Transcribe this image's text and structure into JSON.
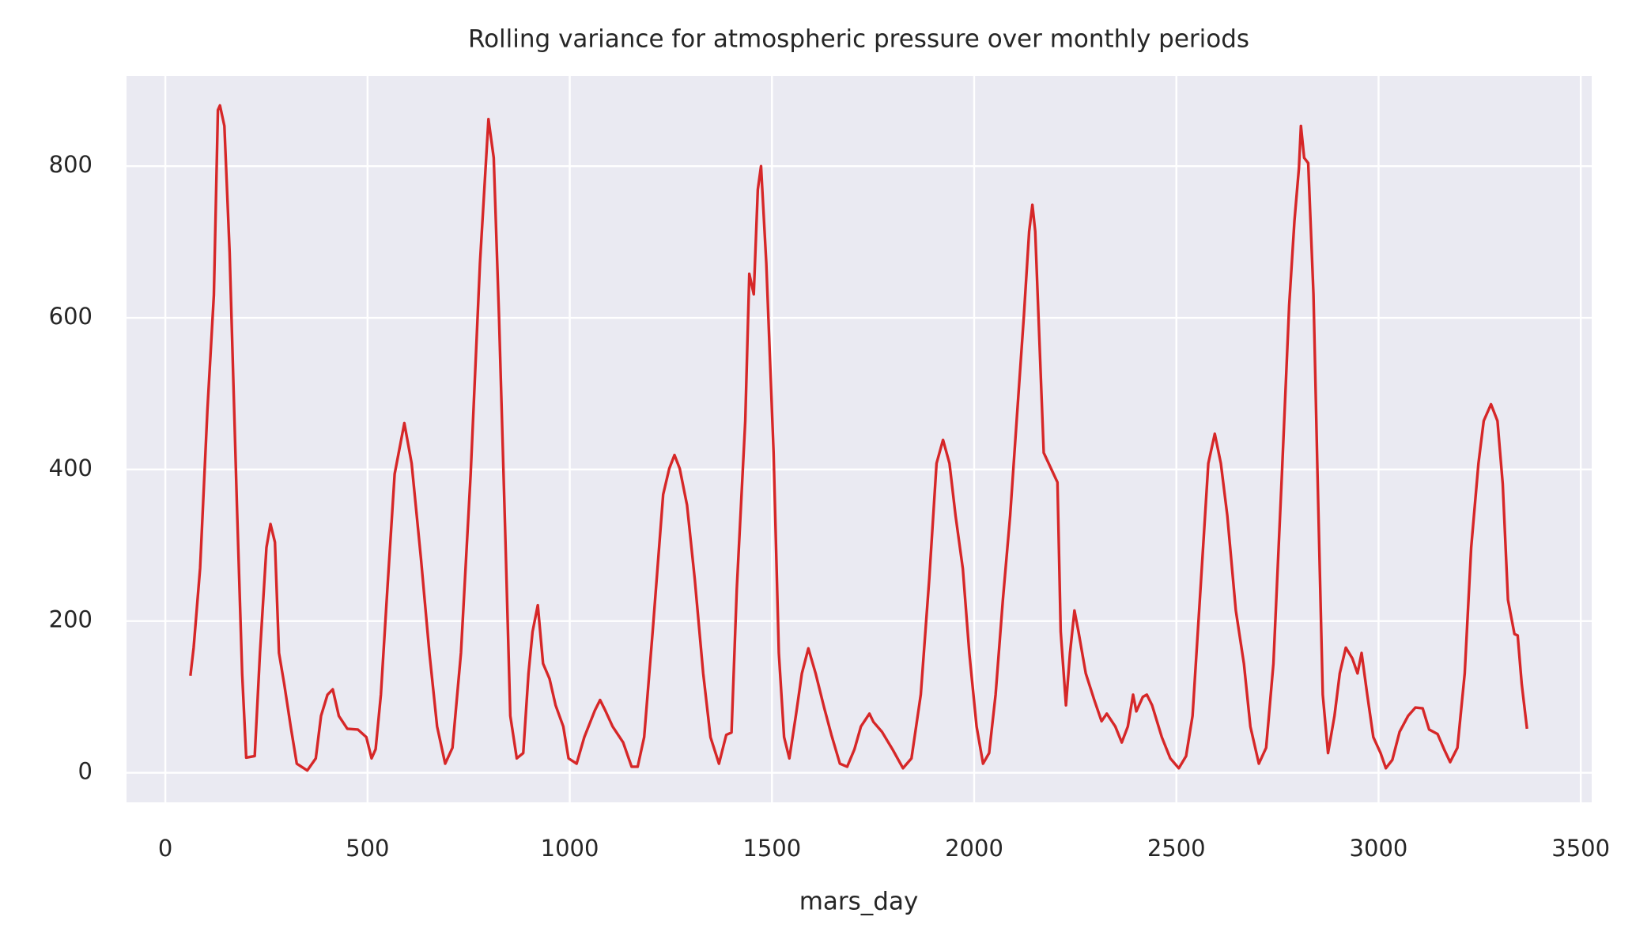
{
  "chart_data": {
    "type": "line",
    "title": "Rolling variance for atmospheric pressure over monthly periods",
    "x_label": "mars_day",
    "x": [
      62,
      70,
      86,
      104,
      120,
      130,
      135,
      146,
      159,
      177,
      190,
      200,
      221,
      234,
      250,
      260,
      271,
      281,
      294,
      310,
      325,
      351,
      372,
      385,
      401,
      414,
      429,
      450,
      476,
      497,
      510,
      520,
      533,
      549,
      567,
      591,
      609,
      632,
      653,
      672,
      692,
      710,
      731,
      755,
      778,
      799,
      812,
      825,
      840,
      853,
      869,
      885,
      898,
      908,
      921,
      934,
      950,
      965,
      984,
      997,
      1017,
      1036,
      1062,
      1075,
      1088,
      1106,
      1132,
      1153,
      1168,
      1184,
      1205,
      1231,
      1246,
      1259,
      1272,
      1290,
      1309,
      1330,
      1348,
      1369,
      1387,
      1400,
      1413,
      1434,
      1444,
      1455,
      1465,
      1473,
      1486,
      1504,
      1517,
      1530,
      1543,
      1559,
      1574,
      1590,
      1608,
      1629,
      1647,
      1668,
      1686,
      1704,
      1720,
      1741,
      1751,
      1772,
      1798,
      1824,
      1845,
      1868,
      1889,
      1907,
      1923,
      1939,
      1954,
      1972,
      1988,
      2006,
      2022,
      2037,
      2053,
      2071,
      2089,
      2105,
      2123,
      2136,
      2144,
      2151,
      2162,
      2172,
      2206,
      2214,
      2227,
      2237,
      2248,
      2258,
      2276,
      2297,
      2315,
      2328,
      2349,
      2365,
      2380,
      2393,
      2401,
      2417,
      2427,
      2440,
      2464,
      2485,
      2506,
      2524,
      2540,
      2558,
      2579,
      2595,
      2610,
      2626,
      2647,
      2667,
      2683,
      2704,
      2722,
      2740,
      2761,
      2779,
      2792,
      2803,
      2808,
      2816,
      2826,
      2839,
      2849,
      2862,
      2875,
      2891,
      2904,
      2919,
      2935,
      2948,
      2958,
      2972,
      2987,
      3005,
      3018,
      3034,
      3052,
      3073,
      3091,
      3109,
      3125,
      3146,
      3162,
      3177,
      3195,
      3213,
      3229,
      3247,
      3260,
      3278,
      3294,
      3307,
      3320,
      3336,
      3344,
      3354,
      3367
    ],
    "series": [
      {
        "name": "rolling variance",
        "color": "#d62728",
        "values": [
          128,
          165,
          270,
          478,
          630,
          874,
          880,
          853,
          686,
          353,
          130,
          20,
          22,
          158,
          297,
          328,
          304,
          158,
          117,
          61,
          12,
          3,
          19,
          75,
          103,
          110,
          75,
          58,
          57,
          47,
          19,
          31,
          103,
          242,
          394,
          461,
          408,
          283,
          158,
          61,
          12,
          33,
          158,
          394,
          672,
          862,
          811,
          603,
          325,
          75,
          19,
          26,
          131,
          186,
          221,
          144,
          124,
          89,
          61,
          19,
          12,
          47,
          82,
          96,
          82,
          61,
          40,
          8,
          8,
          47,
          186,
          367,
          401,
          419,
          401,
          353,
          256,
          131,
          47,
          12,
          50,
          53,
          242,
          464,
          658,
          631,
          769,
          800,
          672,
          422,
          158,
          47,
          19,
          75,
          131,
          164,
          131,
          86,
          50,
          12,
          8,
          31,
          61,
          78,
          67,
          54,
          31,
          6,
          19,
          103,
          256,
          408,
          439,
          408,
          339,
          269,
          158,
          61,
          12,
          26,
          103,
          228,
          339,
          464,
          603,
          714,
          749,
          714,
          561,
          422,
          383,
          186,
          89,
          158,
          214,
          186,
          131,
          96,
          68,
          78,
          61,
          40,
          61,
          103,
          81,
          100,
          103,
          89,
          47,
          19,
          6,
          22,
          75,
          228,
          408,
          447,
          408,
          339,
          214,
          144,
          61,
          12,
          33,
          144,
          394,
          617,
          728,
          797,
          853,
          811,
          804,
          631,
          394,
          103,
          26,
          75,
          131,
          165,
          151,
          131,
          158,
          103,
          47,
          26,
          6,
          17,
          54,
          75,
          86,
          85,
          57,
          51,
          31,
          14,
          33,
          131,
          297,
          408,
          464,
          486,
          464,
          381,
          228,
          183,
          181,
          117,
          58
        ]
      }
    ],
    "xlim": [
      -96,
      3527
    ],
    "ylim": [
      -39,
      919
    ],
    "xticks": [
      0,
      500,
      1000,
      1500,
      2000,
      2500,
      3000,
      3500
    ],
    "yticks": [
      0,
      200,
      400,
      600,
      800
    ],
    "grid": true,
    "background": "#eaeaf2"
  }
}
